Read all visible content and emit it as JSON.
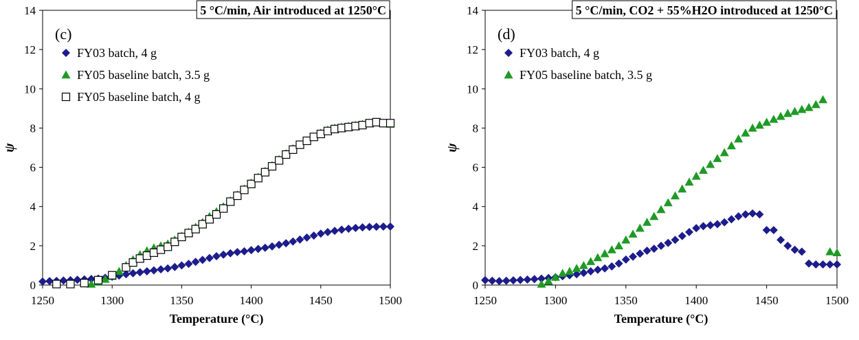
{
  "colors": {
    "fy03": "#1c1c8c",
    "fy05": "#1f9a25",
    "fy05_open": "#000000"
  },
  "chart_data": [
    {
      "type": "scatter",
      "title": "5 °C/min, Air introduced at 1250°C",
      "panel_tag": "(c)",
      "xlabel": "Temperature (°C)",
      "ylabel": "ψ",
      "xlim": [
        1250,
        1500
      ],
      "ylim": [
        0,
        14
      ],
      "xticks": [
        1250,
        1300,
        1350,
        1400,
        1450,
        1500
      ],
      "yticks": [
        0,
        2,
        4,
        6,
        8,
        10,
        12,
        14
      ],
      "legend": "top-left",
      "series": [
        {
          "name": "FY03 batch, 4 g",
          "marker": "diamond",
          "x": [
            1250,
            1255,
            1260,
            1265,
            1270,
            1275,
            1280,
            1285,
            1290,
            1295,
            1300,
            1305,
            1310,
            1315,
            1320,
            1325,
            1330,
            1335,
            1340,
            1345,
            1350,
            1355,
            1360,
            1365,
            1370,
            1375,
            1380,
            1385,
            1390,
            1395,
            1400,
            1405,
            1410,
            1415,
            1420,
            1425,
            1430,
            1435,
            1440,
            1445,
            1450,
            1455,
            1460,
            1465,
            1470,
            1475,
            1480,
            1485,
            1490,
            1495,
            1500
          ],
          "y": [
            0.18,
            0.2,
            0.21,
            0.23,
            0.25,
            0.27,
            0.29,
            0.31,
            0.33,
            0.37,
            0.42,
            0.48,
            0.55,
            0.6,
            0.65,
            0.7,
            0.75,
            0.8,
            0.85,
            0.92,
            1.0,
            1.08,
            1.18,
            1.28,
            1.38,
            1.47,
            1.55,
            1.62,
            1.68,
            1.72,
            1.78,
            1.84,
            1.9,
            1.97,
            2.05,
            2.13,
            2.22,
            2.32,
            2.42,
            2.52,
            2.62,
            2.7,
            2.76,
            2.82,
            2.87,
            2.91,
            2.94,
            2.96,
            2.97,
            2.98,
            2.98
          ]
        },
        {
          "name": "FY05 baseline batch, 3.5 g",
          "marker": "triangle",
          "x": [
            1285,
            1290,
            1295,
            1300,
            1305,
            1310,
            1315,
            1320,
            1325,
            1330,
            1335,
            1340,
            1345,
            1350,
            1355,
            1360,
            1365,
            1370,
            1375,
            1380,
            1385,
            1390,
            1395,
            1400,
            1405,
            1410,
            1415,
            1420,
            1425,
            1430,
            1435,
            1440,
            1445,
            1450,
            1455,
            1460,
            1465,
            1470,
            1475,
            1480,
            1485,
            1490,
            1495,
            1500
          ],
          "y": [
            0.05,
            0.15,
            0.3,
            0.45,
            0.7,
            1.0,
            1.3,
            1.55,
            1.75,
            1.9,
            2.0,
            2.1,
            2.3,
            2.5,
            2.7,
            2.95,
            3.2,
            3.5,
            3.75,
            4.0,
            4.3,
            4.6,
            4.9,
            5.2,
            5.5,
            5.8,
            6.1,
            6.4,
            6.7,
            6.95,
            7.15,
            7.35,
            7.55,
            7.75,
            7.9,
            8.0,
            8.05,
            8.1,
            8.15,
            8.2,
            8.25,
            8.3,
            8.25,
            8.2
          ]
        },
        {
          "name": "FY05 baseline batch, 4 g",
          "marker": "open-square",
          "x": [
            1260,
            1270,
            1280,
            1290,
            1300,
            1310,
            1315,
            1320,
            1325,
            1330,
            1335,
            1340,
            1345,
            1350,
            1355,
            1360,
            1365,
            1370,
            1375,
            1380,
            1385,
            1390,
            1395,
            1400,
            1405,
            1410,
            1415,
            1420,
            1425,
            1430,
            1435,
            1440,
            1445,
            1450,
            1455,
            1460,
            1465,
            1470,
            1475,
            1480,
            1485,
            1490,
            1495,
            1500
          ],
          "y": [
            0.05,
            0.05,
            0.1,
            0.25,
            0.5,
            0.9,
            1.15,
            1.35,
            1.5,
            1.65,
            1.8,
            1.95,
            2.2,
            2.45,
            2.65,
            2.85,
            3.1,
            3.35,
            3.6,
            3.9,
            4.25,
            4.55,
            4.85,
            5.15,
            5.45,
            5.75,
            6.05,
            6.35,
            6.65,
            6.9,
            7.15,
            7.35,
            7.55,
            7.7,
            7.85,
            7.95,
            8.0,
            8.05,
            8.1,
            8.15,
            8.25,
            8.3,
            8.25,
            8.25
          ]
        }
      ]
    },
    {
      "type": "scatter",
      "title": "5 °C/min, CO2 + 55%H2O introduced at 1250°C",
      "panel_tag": "(d)",
      "xlabel": "Temperature (°C)",
      "ylabel": "ψ",
      "xlim": [
        1250,
        1500
      ],
      "ylim": [
        0,
        14
      ],
      "xticks": [
        1250,
        1300,
        1350,
        1400,
        1450,
        1500
      ],
      "yticks": [
        0,
        2,
        4,
        6,
        8,
        10,
        12,
        14
      ],
      "legend": "top-left",
      "series": [
        {
          "name": "FY03 batch, 4 g",
          "marker": "diamond",
          "x": [
            1250,
            1255,
            1260,
            1265,
            1270,
            1275,
            1280,
            1285,
            1290,
            1295,
            1300,
            1305,
            1310,
            1315,
            1320,
            1325,
            1330,
            1335,
            1340,
            1345,
            1350,
            1355,
            1360,
            1365,
            1370,
            1375,
            1380,
            1385,
            1390,
            1395,
            1400,
            1405,
            1410,
            1415,
            1420,
            1425,
            1430,
            1435,
            1440,
            1445,
            1450,
            1455,
            1460,
            1465,
            1470,
            1475,
            1480,
            1485,
            1490,
            1495,
            1500
          ],
          "y": [
            0.25,
            0.22,
            0.2,
            0.22,
            0.24,
            0.26,
            0.28,
            0.3,
            0.33,
            0.36,
            0.4,
            0.45,
            0.5,
            0.55,
            0.62,
            0.7,
            0.78,
            0.85,
            0.95,
            1.1,
            1.3,
            1.45,
            1.6,
            1.75,
            1.85,
            2.0,
            2.15,
            2.3,
            2.5,
            2.7,
            2.9,
            3.0,
            3.05,
            3.1,
            3.2,
            3.35,
            3.5,
            3.6,
            3.65,
            3.6,
            2.8,
            2.8,
            2.3,
            2.0,
            1.8,
            1.7,
            1.1,
            1.05,
            1.05,
            1.05,
            1.05
          ]
        },
        {
          "name": "FY05 baseline batch, 3.5 g",
          "marker": "triangle",
          "x": [
            1290,
            1295,
            1300,
            1305,
            1310,
            1315,
            1320,
            1325,
            1330,
            1335,
            1340,
            1345,
            1350,
            1355,
            1360,
            1365,
            1370,
            1375,
            1380,
            1385,
            1390,
            1395,
            1400,
            1405,
            1410,
            1415,
            1420,
            1425,
            1430,
            1435,
            1440,
            1445,
            1450,
            1455,
            1460,
            1465,
            1470,
            1475,
            1480,
            1485,
            1490,
            1495,
            1500
          ],
          "y": [
            0.05,
            0.2,
            0.4,
            0.6,
            0.7,
            0.85,
            1.0,
            1.2,
            1.4,
            1.6,
            1.8,
            2.0,
            2.3,
            2.6,
            2.9,
            3.2,
            3.5,
            3.85,
            4.2,
            4.55,
            4.9,
            5.25,
            5.55,
            5.85,
            6.15,
            6.45,
            6.75,
            7.1,
            7.45,
            7.75,
            8.0,
            8.15,
            8.3,
            8.45,
            8.6,
            8.75,
            8.85,
            8.95,
            9.05,
            9.2,
            9.45,
            1.7,
            1.65
          ]
        }
      ]
    }
  ]
}
